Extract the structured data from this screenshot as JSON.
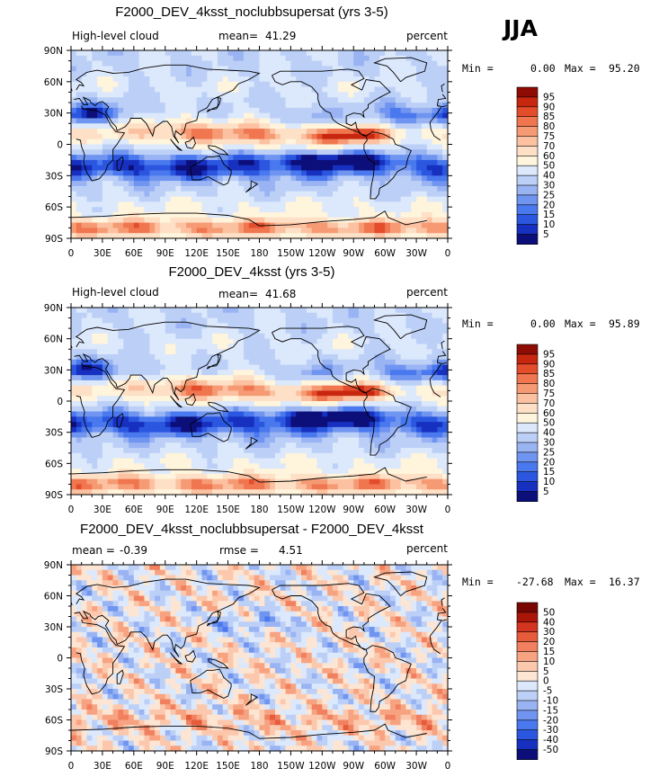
{
  "season": "JJA",
  "colors": {
    "abs_scale": [
      "#0c0f7a",
      "#1730c0",
      "#2b57e0",
      "#4a78ee",
      "#7095f0",
      "#9ab4f3",
      "#bcd0f7",
      "#dce8fb",
      "#fff4dc",
      "#fde0c6",
      "#fbc1a0",
      "#f69a74",
      "#f07650",
      "#e44d2c",
      "#c8270f",
      "#8e0c04"
    ],
    "diff_scale": [
      "#0c0f7a",
      "#1730c0",
      "#2b57e0",
      "#4a78ee",
      "#7095f0",
      "#9ab4f3",
      "#bcd0f7",
      "#dce8fb",
      "#fde5d3",
      "#fbc8ad",
      "#f7a381",
      "#f08060",
      "#e65b3a",
      "#d43520",
      "#aa1608",
      "#7a0604"
    ]
  },
  "panels": [
    {
      "title": "F2000_DEV_4ksst_noclubbsupersat (yrs 3-5)",
      "left_label": "High-level cloud",
      "mean_label": "mean=",
      "mean_value": "41.29",
      "units": "percent",
      "min_label": "Min =",
      "min_value": "0.00",
      "max_label": "Max =",
      "max_value": "95.20",
      "lat_ticks": [
        "90N",
        "60N",
        "30N",
        "0",
        "30S",
        "60S",
        "90S"
      ],
      "lon_ticks": [
        "0",
        "30E",
        "60E",
        "90E",
        "120E",
        "150E",
        "180",
        "150W",
        "120W",
        "90W",
        "60W",
        "30W",
        "0"
      ],
      "colorbar": [
        "95",
        "90",
        "85",
        "80",
        "75",
        "70",
        "60",
        "50",
        "40",
        "30",
        "25",
        "20",
        "15",
        "10",
        "5"
      ]
    },
    {
      "title": "F2000_DEV_4ksst (yrs 3-5)",
      "left_label": "High-level cloud",
      "mean_label": "mean=",
      "mean_value": "41.68",
      "units": "percent",
      "min_label": "Min =",
      "min_value": "0.00",
      "max_label": "Max =",
      "max_value": "95.89",
      "lat_ticks": [
        "90N",
        "60N",
        "30N",
        "0",
        "30S",
        "60S",
        "90S"
      ],
      "lon_ticks": [
        "0",
        "30E",
        "60E",
        "90E",
        "120E",
        "150E",
        "180",
        "150W",
        "120W",
        "90W",
        "60W",
        "30W",
        "0"
      ],
      "colorbar": [
        "95",
        "90",
        "85",
        "80",
        "75",
        "70",
        "60",
        "50",
        "40",
        "30",
        "25",
        "20",
        "15",
        "10",
        "5"
      ]
    },
    {
      "title": "F2000_DEV_4ksst_noclubbsupersat - F2000_DEV_4ksst",
      "left_label": "mean =",
      "left_value": "-0.39",
      "mean_label": "rmse =",
      "mean_value": "4.51",
      "units": "percent",
      "min_label": "Min =",
      "min_value": "-27.68",
      "max_label": "Max =",
      "max_value": "16.37",
      "lat_ticks": [
        "90N",
        "60N",
        "30N",
        "0",
        "30S",
        "60S",
        "90S"
      ],
      "lon_ticks": [
        "0",
        "30E",
        "60E",
        "90E",
        "120E",
        "150E",
        "180",
        "150W",
        "120W",
        "90W",
        "60W",
        "30W",
        "0"
      ],
      "colorbar": [
        "50",
        "40",
        "30",
        "20",
        "15",
        "10",
        "5",
        "0",
        "-5",
        "-10",
        "-15",
        "-20",
        "-30",
        "-40",
        "-50"
      ]
    }
  ],
  "chart_data": [
    {
      "type": "heatmap",
      "title": "F2000_DEV_4ksst_noclubbsupersat (yrs 3-5)",
      "variable": "High-level cloud",
      "units": "percent",
      "mean": 41.29,
      "min": 0.0,
      "max": 95.2,
      "xlim": [
        0,
        360
      ],
      "ylim": [
        -90,
        90
      ],
      "levels": [
        5,
        10,
        15,
        20,
        25,
        30,
        40,
        50,
        60,
        70,
        75,
        80,
        85,
        90,
        95
      ]
    },
    {
      "type": "heatmap",
      "title": "F2000_DEV_4ksst (yrs 3-5)",
      "variable": "High-level cloud",
      "units": "percent",
      "mean": 41.68,
      "min": 0.0,
      "max": 95.89,
      "xlim": [
        0,
        360
      ],
      "ylim": [
        -90,
        90
      ],
      "levels": [
        5,
        10,
        15,
        20,
        25,
        30,
        40,
        50,
        60,
        70,
        75,
        80,
        85,
        90,
        95
      ]
    },
    {
      "type": "heatmap",
      "title": "F2000_DEV_4ksst_noclubbsupersat - F2000_DEV_4ksst",
      "units": "percent",
      "mean": -0.39,
      "rmse": 4.51,
      "min": -27.68,
      "max": 16.37,
      "xlim": [
        0,
        360
      ],
      "ylim": [
        -90,
        90
      ],
      "levels": [
        -50,
        -40,
        -30,
        -20,
        -15,
        -10,
        -5,
        0,
        5,
        10,
        15,
        20,
        30,
        40,
        50
      ]
    }
  ]
}
